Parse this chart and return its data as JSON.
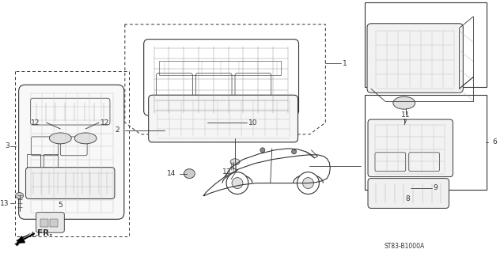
{
  "bg_color": "#ffffff",
  "diagram_code": "ST83-B1000A",
  "fig_width": 6.37,
  "fig_height": 3.2,
  "dpi": 100,
  "line_color": "#333333",
  "lw": 0.6,
  "fs": 6.5
}
